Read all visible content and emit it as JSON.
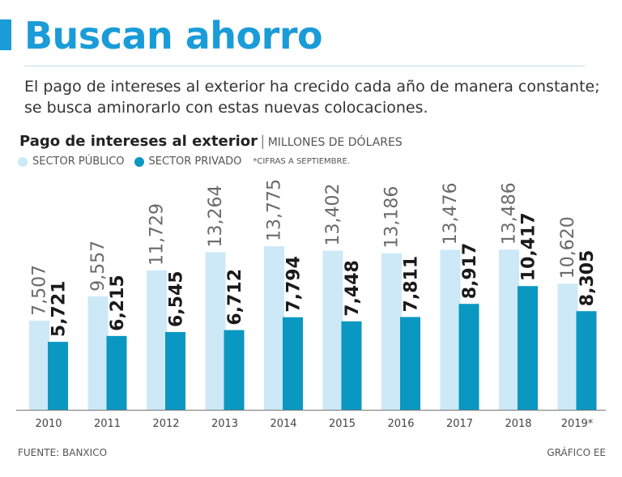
{
  "headline": "Buscan ahorro",
  "intro": "El pago de intereses al exterior ha crecido cada año de manera constante; se busca aminorarlo con estas nuevas colocaciones.",
  "colors": {
    "accent": "#1a9cd8",
    "publico": "#cde9f7",
    "privado": "#0a97c2",
    "text": "#333333"
  },
  "chart_data": {
    "type": "bar",
    "title": "Pago de intereses al exterior",
    "units": "MILLONES DE DÓLARES",
    "note": "*CIFRAS A SEPTIEMBRE.",
    "categories": [
      "2010",
      "2011",
      "2012",
      "2013",
      "2014",
      "2015",
      "2016",
      "2017",
      "2018",
      "2019*"
    ],
    "series": [
      {
        "name": "SECTOR PÚBLICO",
        "values": [
          7507,
          9557,
          11729,
          13264,
          13775,
          13402,
          13186,
          13476,
          13486,
          10620
        ],
        "labels": [
          "7,507",
          "9,557",
          "11,729",
          "13,264",
          "13,775",
          "13,402",
          "13,186",
          "13,476",
          "13,486",
          "10,620"
        ]
      },
      {
        "name": "SECTOR PRIVADO",
        "values": [
          5721,
          6215,
          6545,
          6712,
          7794,
          7448,
          7811,
          8917,
          10417,
          8305
        ],
        "labels": [
          "5,721",
          "6,215",
          "6,545",
          "6,712",
          "7,794",
          "7,448",
          "7,811",
          "8,917",
          "10,417",
          "8,305"
        ]
      }
    ],
    "ylim": [
      0,
      15000
    ],
    "xlabel": "",
    "ylabel": ""
  },
  "source": "FUENTE: BANXICO",
  "credit": "GRÁFICO EE"
}
